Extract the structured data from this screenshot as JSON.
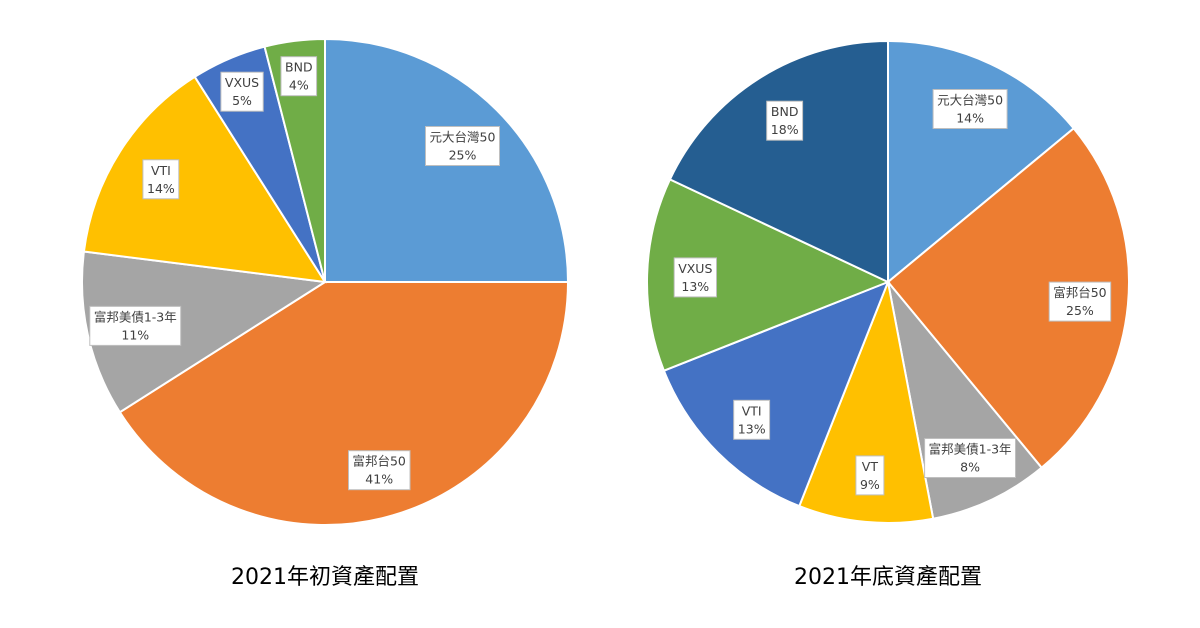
{
  "chart_data": [
    {
      "type": "pie",
      "title": "2021年初資產配置",
      "start_angle_deg": 0,
      "direction": "clockwise",
      "slices": [
        {
          "label": "元大台灣50",
          "percent_label": "25%",
          "value": 25,
          "color": "#5B9BD5"
        },
        {
          "label": "富邦台50",
          "percent_label": "41%",
          "value": 41,
          "color": "#ED7D31"
        },
        {
          "label": "富邦美債1-3年",
          "percent_label": "11%",
          "value": 11,
          "color": "#A5A5A5"
        },
        {
          "label": "VTI",
          "percent_label": "14%",
          "value": 14,
          "color": "#FFC000"
        },
        {
          "label": "VXUS",
          "percent_label": "5%",
          "value": 5,
          "color": "#4472C4"
        },
        {
          "label": "BND",
          "percent_label": "4%",
          "value": 4,
          "color": "#70AD47"
        }
      ]
    },
    {
      "type": "pie",
      "title": "2021年底資產配置",
      "start_angle_deg": 0,
      "direction": "clockwise",
      "slices": [
        {
          "label": "元大台灣50",
          "percent_label": "14%",
          "value": 14,
          "color": "#5B9BD5"
        },
        {
          "label": "富邦台50",
          "percent_label": "25%",
          "value": 25,
          "color": "#ED7D31"
        },
        {
          "label": "富邦美債1-3年",
          "percent_label": "8%",
          "value": 8,
          "color": "#A5A5A5"
        },
        {
          "label": "VT",
          "percent_label": "9%",
          "value": 9,
          "color": "#FFC000"
        },
        {
          "label": "VTI",
          "percent_label": "13%",
          "value": 13,
          "color": "#4472C4"
        },
        {
          "label": "VXUS",
          "percent_label": "13%",
          "value": 13,
          "color": "#70AD47"
        },
        {
          "label": "BND",
          "percent_label": "18%",
          "value": 18,
          "color": "#255E91"
        }
      ]
    }
  ]
}
